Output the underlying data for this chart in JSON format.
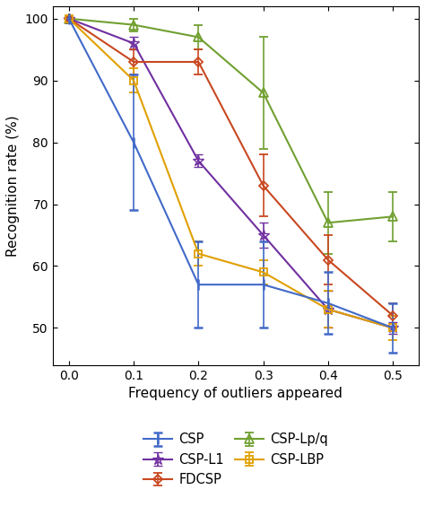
{
  "x": [
    0,
    0.1,
    0.2,
    0.3,
    0.4,
    0.5
  ],
  "series": {
    "CSP": {
      "y": [
        100,
        80,
        57,
        57,
        54,
        50
      ],
      "yerr": [
        0,
        11,
        7,
        7,
        5,
        4
      ],
      "color": "#4169C8",
      "marker": "|",
      "markersize": 9,
      "markeredgewidth": 1.8,
      "markerfacecolor": "none"
    },
    "FDCSP": {
      "y": [
        100,
        93,
        93,
        73,
        61,
        52
      ],
      "yerr": [
        0,
        2,
        2,
        5,
        4,
        2
      ],
      "color": "#C84820",
      "marker": "D",
      "markersize": 5,
      "markeredgewidth": 1.3,
      "markerfacecolor": "none"
    },
    "CSP-LBP": {
      "y": [
        100,
        90,
        62,
        59,
        53,
        50
      ],
      "yerr": [
        0,
        2,
        2,
        2,
        3,
        2
      ],
      "color": "#E0A000",
      "marker": "s",
      "markersize": 6,
      "markeredgewidth": 1.3,
      "markerfacecolor": "none"
    },
    "CSP-L1": {
      "y": [
        100,
        96,
        77,
        65,
        53,
        50
      ],
      "yerr": [
        0,
        1,
        1,
        2,
        3,
        1
      ],
      "color": "#7030A0",
      "marker": "*",
      "markersize": 9,
      "markeredgewidth": 1.0,
      "markerfacecolor": "none"
    },
    "CSP-Lp/q": {
      "y": [
        100,
        99,
        97,
        88,
        67,
        68
      ],
      "yerr": [
        0,
        1,
        2,
        9,
        5,
        4
      ],
      "color": "#70A030",
      "marker": "^",
      "markersize": 7,
      "markeredgewidth": 1.3,
      "markerfacecolor": "none"
    }
  },
  "plot_order": [
    "CSP-Lp/q",
    "CSP-L1",
    "FDCSP",
    "CSP-LBP",
    "CSP"
  ],
  "xlabel": "Frequency of outliers appeared",
  "ylabel": "Recognition rate (%)",
  "xlim": [
    -0.025,
    0.54
  ],
  "ylim": [
    44,
    102
  ],
  "yticks": [
    50,
    60,
    70,
    80,
    90,
    100
  ],
  "xticks": [
    0,
    0.1,
    0.2,
    0.3,
    0.4,
    0.5
  ],
  "legend_col1": [
    "CSP",
    "FDCSP",
    "CSP-LBP"
  ],
  "legend_col2": [
    "CSP-L1",
    "CSP-Lp/q"
  ],
  "figsize": [
    4.74,
    5.65
  ],
  "dpi": 100
}
